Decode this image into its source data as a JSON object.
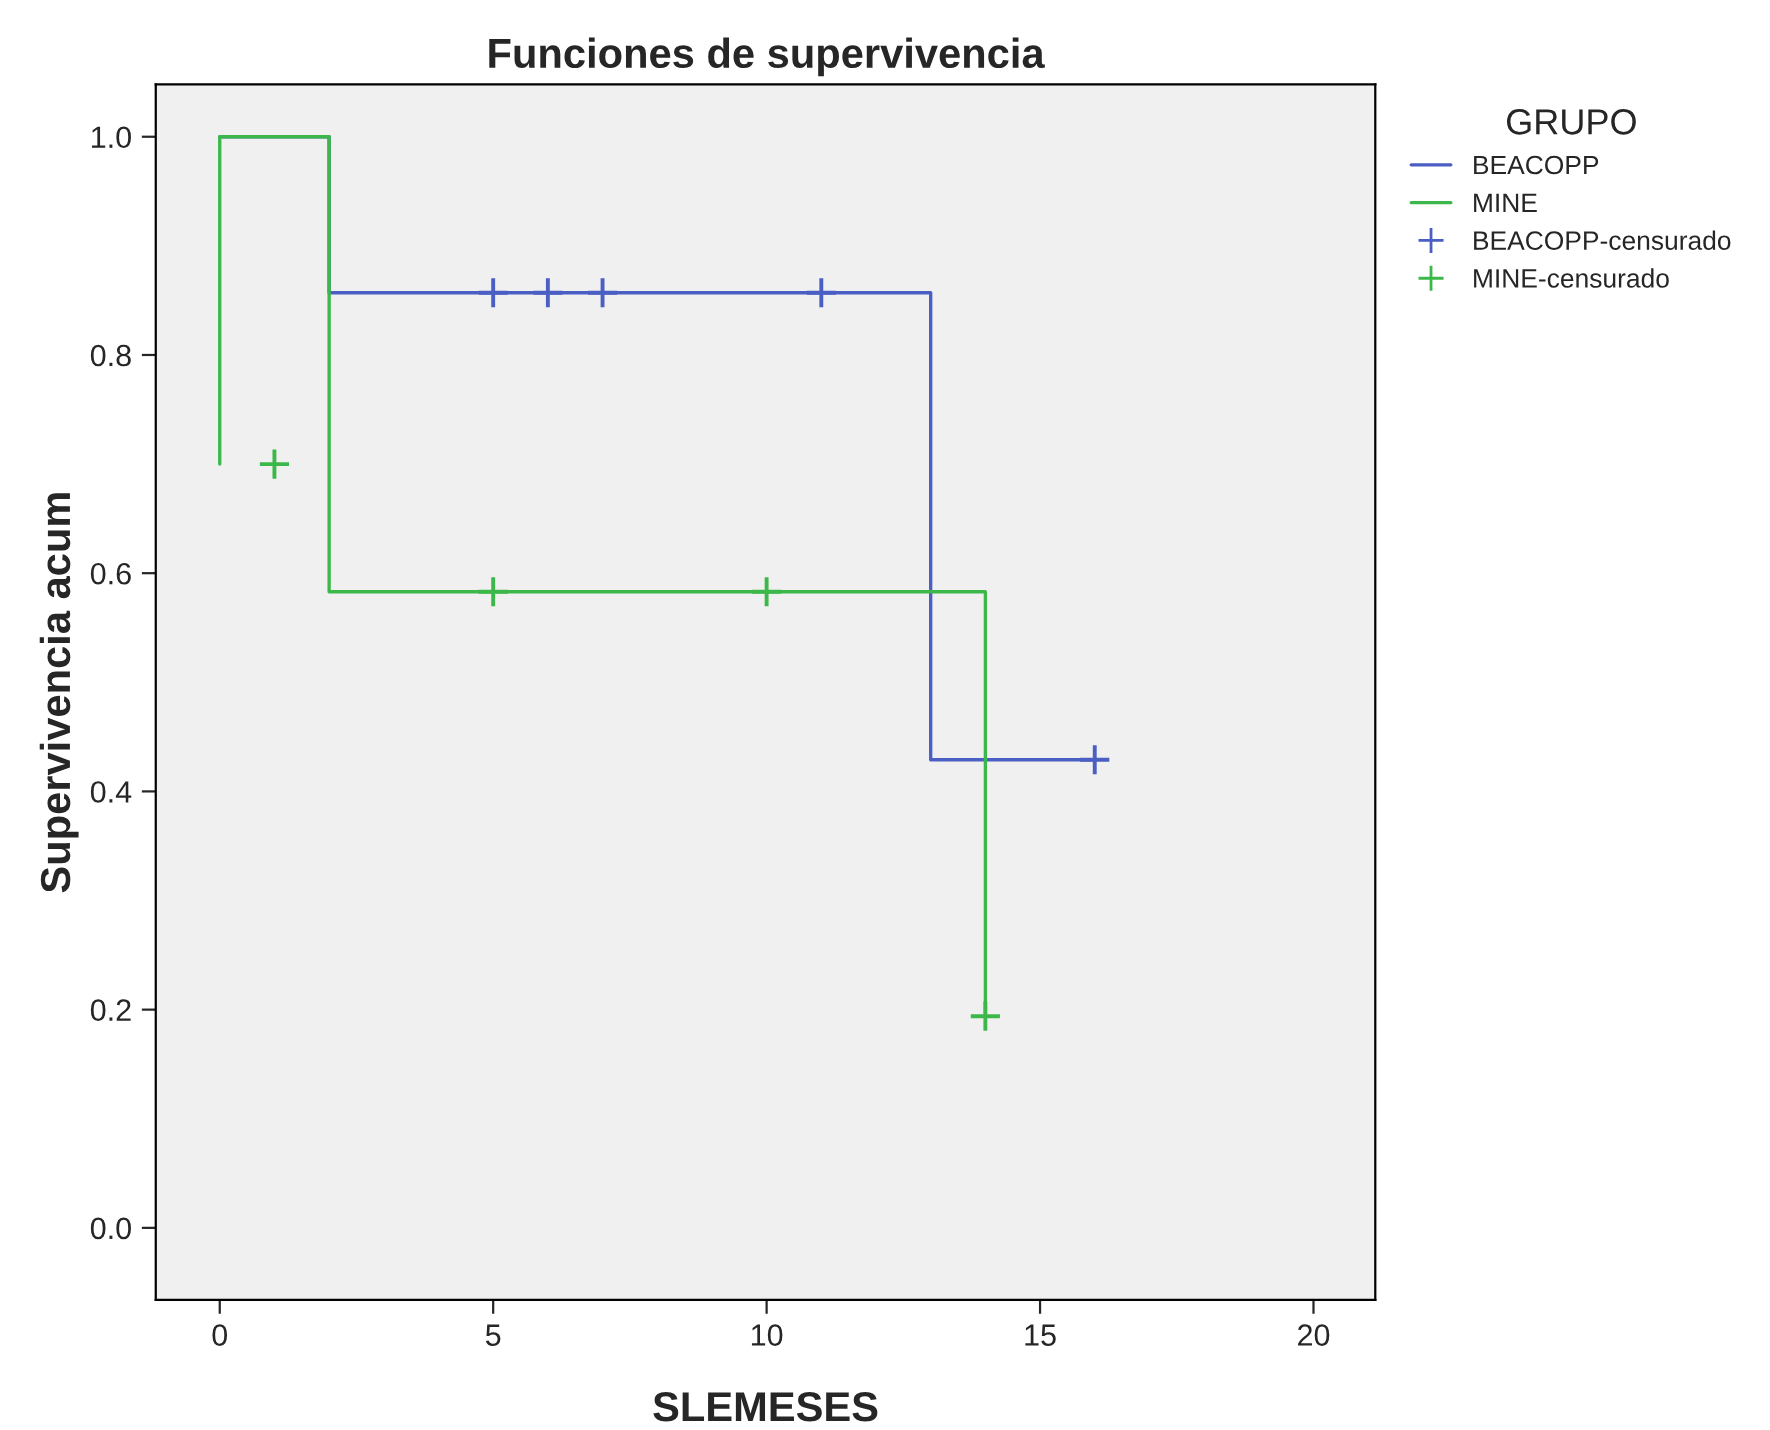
{
  "chart_data": {
    "type": "step",
    "title": "Funciones de supervivencia",
    "xlabel": "SLEMESES",
    "ylabel": "Supervivencia acum",
    "legend_title": "GRUPO",
    "series": [
      {
        "name": "BEACOPP",
        "color": "#4a5ec4",
        "x": [
          0,
          2,
          13,
          16
        ],
        "values": [
          1.0,
          0.857,
          0.429,
          0.429
        ]
      },
      {
        "name": "MINE",
        "color": "#3cb84a",
        "x": [
          0,
          0,
          2,
          14,
          14
        ],
        "values": [
          0.7,
          1.0,
          0.583,
          0.583,
          0.194
        ]
      },
      {
        "name": "BEACOPP-censurado",
        "type": "scatter",
        "marker": "cross",
        "color": "#4a5ec4",
        "x": [
          5,
          6,
          7,
          11,
          16
        ],
        "values": [
          0.857,
          0.857,
          0.857,
          0.857,
          0.429
        ]
      },
      {
        "name": "MINE-censurado",
        "type": "scatter",
        "marker": "cross",
        "color": "#3cb84a",
        "x": [
          1,
          5,
          10,
          14
        ],
        "values": [
          0.7,
          0.583,
          0.583,
          0.194
        ]
      }
    ],
    "xlim": [
      -1.17,
      21.13
    ],
    "ylim": [
      -0.066,
      1.048
    ],
    "xticks": [
      0,
      5,
      10,
      15,
      20
    ],
    "yticks": [
      {
        "value": 0,
        "label": "0.0"
      },
      0.2,
      0.4,
      0.6,
      0.8,
      {
        "value": 1,
        "label": "1.0"
      }
    ],
    "grid": false,
    "legend": "right"
  }
}
